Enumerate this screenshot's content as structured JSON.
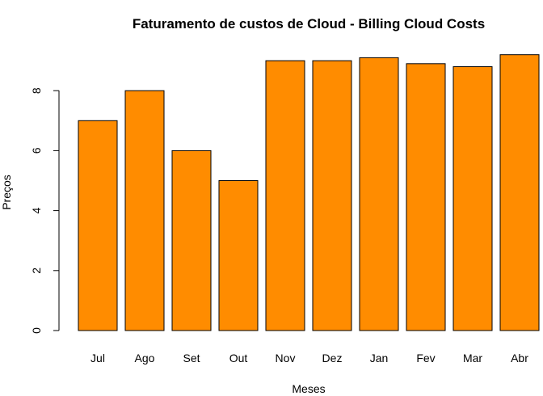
{
  "chart_data": {
    "type": "bar",
    "title": "Faturamento de custos de Cloud - Billing Cloud Costs",
    "xlabel": "Meses",
    "ylabel": "Preços",
    "categories": [
      "Jul",
      "Ago",
      "Set",
      "Out",
      "Nov",
      "Dez",
      "Jan",
      "Fev",
      "Mar",
      "Abr"
    ],
    "values": [
      7.0,
      8.0,
      6.0,
      5.0,
      9.0,
      9.0,
      9.1,
      8.9,
      8.8,
      9.2
    ],
    "ylim": [
      0,
      9.2
    ],
    "yticks": [
      0,
      2,
      4,
      6,
      8
    ],
    "grid": false,
    "legend": "none",
    "bar_color": "#FF8C00",
    "border_color": "#000000"
  }
}
